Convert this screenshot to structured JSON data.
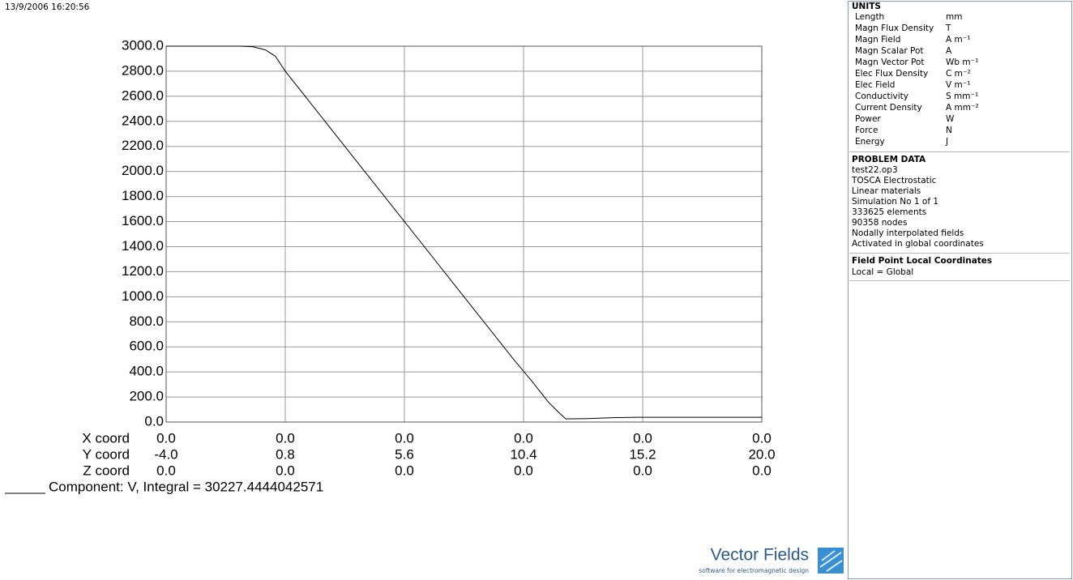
{
  "timestamp": "13/9/2006 16:20:56",
  "chart_data": {
    "type": "line",
    "x": [
      -4,
      -1,
      -0.5,
      0,
      0.4,
      0.8,
      2,
      4,
      6,
      8,
      10,
      10.8,
      11.4,
      11.8,
      12.1,
      13,
      14,
      15,
      17,
      20
    ],
    "series": [
      {
        "name": "Component: V, Integral = 30227.4444042571",
        "color": "#000000",
        "values": [
          3000,
          3000,
          2995,
          2970,
          2920,
          2800,
          2500,
          2000,
          1500,
          1000,
          500,
          310,
          160,
          80,
          25,
          28,
          35,
          38,
          38,
          38
        ]
      }
    ],
    "xlim": [
      -4,
      20
    ],
    "xticks": [
      {
        "value": -4,
        "label": "-4.0"
      },
      {
        "value": 0.8,
        "label": "0.8"
      },
      {
        "value": 5.6,
        "label": "5.6"
      },
      {
        "value": 10.4,
        "label": "10.4"
      },
      {
        "value": 15.2,
        "label": "15.2"
      },
      {
        "value": 20,
        "label": "20.0"
      }
    ],
    "ylim": [
      0,
      3000
    ],
    "yticks": [
      {
        "value": 0,
        "label": "0.0"
      },
      {
        "value": 200,
        "label": "200.0"
      },
      {
        "value": 400,
        "label": "400.0"
      },
      {
        "value": 600,
        "label": "600.0"
      },
      {
        "value": 800,
        "label": "800.0"
      },
      {
        "value": 1000,
        "label": "1000.0"
      },
      {
        "value": 1200,
        "label": "1200.0"
      },
      {
        "value": 1400,
        "label": "1400.0"
      },
      {
        "value": 1600,
        "label": "1600.0"
      },
      {
        "value": 1800,
        "label": "1800.0"
      },
      {
        "value": 2000,
        "label": "2000.0"
      },
      {
        "value": 2200,
        "label": "2200.0"
      },
      {
        "value": 2400,
        "label": "2400.0"
      },
      {
        "value": 2600,
        "label": "2600.0"
      },
      {
        "value": 2800,
        "label": "2800.0"
      },
      {
        "value": 3000,
        "label": "3000.0"
      }
    ],
    "grid": true,
    "axis_rows": {
      "labels": [
        "X coord",
        "Y coord",
        "Z coord"
      ],
      "x_coord": [
        "0.0",
        "0.0",
        "0.0",
        "0.0",
        "0.0",
        "0.0"
      ],
      "z_coord": [
        "0.0",
        "0.0",
        "0.0",
        "0.0",
        "0.0",
        "0.0"
      ]
    }
  },
  "panel": {
    "units": {
      "title": "UNITS",
      "rows": [
        [
          "Length",
          "mm"
        ],
        [
          "Magn Flux Density",
          "T"
        ],
        [
          "Magn Field",
          "A m⁻¹"
        ],
        [
          "Magn Scalar Pot",
          "A"
        ],
        [
          "Magn Vector Pot",
          "Wb m⁻¹"
        ],
        [
          "Elec Flux Density",
          "C m⁻²"
        ],
        [
          "Elec Field",
          "V m⁻¹"
        ],
        [
          "Conductivity",
          "S mm⁻¹"
        ],
        [
          "Current Density",
          "A mm⁻²"
        ],
        [
          "Power",
          "W"
        ],
        [
          "Force",
          "N"
        ],
        [
          "Energy",
          "J"
        ]
      ]
    },
    "problem_data": {
      "title": "PROBLEM DATA",
      "lines": [
        "test22.op3",
        "TOSCA Electrostatic",
        "Linear materials",
        "Simulation No 1 of 1",
        "333625 elements",
        "90358 nodes",
        "Nodally interpolated fields",
        "Activated in global coordinates"
      ]
    },
    "field_point": {
      "title": "Field Point Local Coordinates",
      "lines": [
        "Local = Global"
      ]
    }
  },
  "logo": {
    "name": "Vector Fields",
    "tagline": "software for electromagnetic design"
  }
}
